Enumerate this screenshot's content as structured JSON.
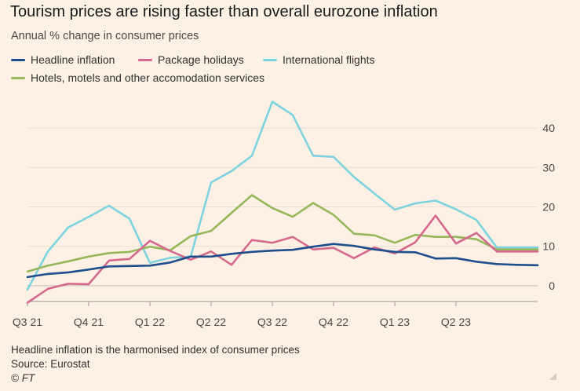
{
  "title": "Tourism prices are rising faster than overall eurozone inflation",
  "subtitle": "Annual % change in consumer prices",
  "legend": [
    {
      "label": "Headline inflation",
      "color": "#1f4e8c"
    },
    {
      "label": "Package holidays",
      "color": "#d66a8e"
    },
    {
      "label": "International flights",
      "color": "#7fd3de"
    },
    {
      "label": "Hotels, motels and other accomodation services",
      "color": "#96b85a"
    }
  ],
  "footer": {
    "note": "Headline inflation is the harmonised index of consumer prices",
    "source": "Source: Eurostat",
    "credit": "© FT"
  },
  "chart_data": {
    "type": "line",
    "x_tick_labels": [
      "Q3 21",
      "Q4 21",
      "Q1 22",
      "Q2 22",
      "Q3 22",
      "Q4 22",
      "Q1 23",
      "Q2 23"
    ],
    "x": [
      "2021-07",
      "2021-08",
      "2021-09",
      "2021-10",
      "2021-11",
      "2021-12",
      "2022-01",
      "2022-02",
      "2022-03",
      "2022-04",
      "2022-05",
      "2022-06",
      "2022-07",
      "2022-08",
      "2022-09",
      "2022-10",
      "2022-11",
      "2022-12",
      "2023-01",
      "2023-02",
      "2023-03",
      "2023-04",
      "2023-05",
      "2023-06",
      "2023-07",
      "2023-08"
    ],
    "y_ticks": [
      0,
      10,
      20,
      30,
      40
    ],
    "ylim": [
      -4,
      47
    ],
    "grid": true,
    "y_axis_side": "right",
    "series": [
      {
        "name": "Headline inflation",
        "color": "#1f4e8c",
        "values": [
          2.2,
          3.0,
          3.4,
          4.1,
          4.9,
          5.0,
          5.1,
          5.9,
          7.4,
          7.4,
          8.1,
          8.6,
          8.9,
          9.1,
          9.9,
          10.6,
          10.1,
          9.2,
          8.6,
          8.5,
          6.9,
          7.0,
          6.1,
          5.5,
          5.3,
          5.2
        ]
      },
      {
        "name": "Package holidays",
        "color": "#d66a8e",
        "values": [
          -4.3,
          -0.8,
          0.5,
          0.4,
          6.4,
          6.8,
          11.4,
          8.8,
          6.6,
          8.7,
          5.3,
          11.6,
          10.9,
          12.4,
          9.2,
          9.6,
          7.0,
          9.7,
          8.2,
          11.0,
          17.8,
          10.7,
          13.4,
          8.7,
          8.7,
          8.7
        ]
      },
      {
        "name": "International flights",
        "color": "#7fd3de",
        "values": [
          -1.0,
          8.7,
          14.8,
          17.5,
          20.3,
          17.0,
          5.8,
          7.1,
          7.4,
          26.2,
          29.1,
          33.0,
          46.7,
          43.3,
          33.0,
          32.7,
          27.6,
          23.4,
          19.3,
          20.9,
          21.6,
          19.4,
          16.7,
          9.7,
          9.7,
          9.7
        ]
      },
      {
        "name": "Hotels, motels and other accomodation services",
        "color": "#96b85a",
        "values": [
          3.6,
          5.1,
          6.2,
          7.4,
          8.3,
          8.6,
          9.9,
          9.0,
          12.6,
          13.9,
          18.5,
          23.0,
          19.7,
          17.5,
          21.0,
          18.0,
          13.2,
          12.8,
          10.9,
          12.9,
          12.4,
          12.4,
          11.8,
          9.2,
          9.2,
          9.2
        ]
      }
    ]
  }
}
